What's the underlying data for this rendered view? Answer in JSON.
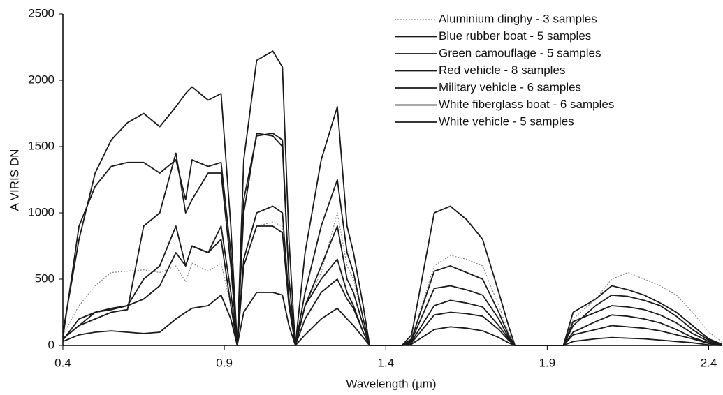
{
  "chart_data": {
    "type": "line",
    "x_label": "Wavelength (µm)",
    "y_label": "A VIRIS DN",
    "xlim": [
      0.4,
      2.44
    ],
    "ylim": [
      0,
      2500
    ],
    "xticks": [
      0.4,
      0.9,
      1.4,
      1.9,
      2.4
    ],
    "yticks": [
      0,
      500,
      1000,
      1500,
      2000,
      2500
    ],
    "grid": false,
    "legend": "top-right",
    "x": [
      0.4,
      0.45,
      0.5,
      0.55,
      0.6,
      0.65,
      0.7,
      0.75,
      0.78,
      0.8,
      0.85,
      0.89,
      0.92,
      0.94,
      0.96,
      1.0,
      1.05,
      1.08,
      1.1,
      1.12,
      1.15,
      1.2,
      1.25,
      1.28,
      1.3,
      1.33,
      1.35,
      1.45,
      1.48,
      1.55,
      1.6,
      1.65,
      1.7,
      1.75,
      1.78,
      1.8,
      1.95,
      1.98,
      2.05,
      2.1,
      2.15,
      2.2,
      2.25,
      2.3,
      2.35,
      2.4,
      2.44
    ],
    "series": [
      {
        "name": "Aluminium dinghy - 3 samples",
        "color": "#888888",
        "dash": "dotted",
        "values": [
          80,
          300,
          450,
          550,
          560,
          570,
          550,
          600,
          480,
          620,
          560,
          620,
          300,
          0,
          600,
          900,
          930,
          900,
          300,
          0,
          300,
          550,
          1000,
          600,
          500,
          200,
          0,
          0,
          50,
          600,
          680,
          650,
          600,
          300,
          100,
          0,
          0,
          200,
          350,
          500,
          550,
          500,
          450,
          380,
          250,
          100,
          30
        ]
      },
      {
        "name": "Blue rubber boat - 5 samples",
        "color": "#1a1a1a",
        "values": [
          100,
          800,
          1300,
          1550,
          1680,
          1750,
          1650,
          1800,
          1900,
          1950,
          1850,
          1900,
          900,
          0,
          1400,
          2150,
          2220,
          2100,
          800,
          0,
          700,
          1400,
          1800,
          900,
          700,
          300,
          0,
          0,
          80,
          1000,
          1050,
          950,
          800,
          400,
          150,
          0,
          0,
          250,
          350,
          450,
          420,
          380,
          320,
          250,
          150,
          50,
          10
        ]
      },
      {
        "name": "Green camouflage - 5 samples",
        "color": "#1a1a1a",
        "values": [
          30,
          80,
          100,
          110,
          100,
          90,
          100,
          200,
          250,
          280,
          300,
          380,
          200,
          0,
          250,
          400,
          400,
          380,
          150,
          0,
          80,
          200,
          280,
          200,
          150,
          60,
          0,
          0,
          10,
          120,
          140,
          130,
          110,
          60,
          20,
          0,
          0,
          30,
          50,
          60,
          55,
          50,
          40,
          30,
          20,
          5,
          0
        ]
      },
      {
        "name": "Red vehicle - 8 samples",
        "color": "#1a1a1a",
        "values": [
          50,
          150,
          200,
          250,
          270,
          900,
          1000,
          1450,
          1000,
          1100,
          1300,
          1300,
          600,
          0,
          1000,
          1600,
          1580,
          1500,
          500,
          0,
          400,
          900,
          1250,
          700,
          550,
          200,
          0,
          0,
          50,
          560,
          600,
          550,
          500,
          250,
          80,
          0,
          0,
          150,
          300,
          380,
          370,
          340,
          300,
          220,
          120,
          40,
          10
        ]
      },
      {
        "name": "Military vehicle  - 6 samples",
        "color": "#1a1a1a",
        "values": [
          40,
          200,
          250,
          270,
          300,
          350,
          450,
          700,
          600,
          750,
          700,
          900,
          400,
          0,
          650,
          1000,
          1050,
          1000,
          350,
          0,
          300,
          600,
          900,
          500,
          400,
          150,
          0,
          0,
          30,
          300,
          340,
          320,
          290,
          150,
          50,
          0,
          0,
          80,
          120,
          150,
          140,
          130,
          110,
          80,
          50,
          15,
          0
        ]
      },
      {
        "name": "White fiberglass boat - 6 samples",
        "color": "#1a1a1a",
        "values": [
          60,
          900,
          1200,
          1350,
          1380,
          1380,
          1300,
          1400,
          1100,
          1400,
          1350,
          1380,
          700,
          0,
          1100,
          1580,
          1600,
          1550,
          500,
          0,
          300,
          500,
          650,
          400,
          300,
          100,
          0,
          0,
          40,
          430,
          450,
          420,
          380,
          200,
          60,
          0,
          0,
          180,
          250,
          300,
          290,
          270,
          230,
          170,
          90,
          30,
          5
        ]
      },
      {
        "name": "White vehicle - 5 samples",
        "color": "#1a1a1a",
        "values": [
          50,
          150,
          250,
          280,
          300,
          500,
          600,
          900,
          600,
          750,
          700,
          800,
          300,
          0,
          600,
          900,
          900,
          850,
          300,
          0,
          200,
          400,
          500,
          350,
          280,
          100,
          0,
          0,
          20,
          230,
          250,
          240,
          220,
          120,
          40,
          0,
          0,
          100,
          180,
          230,
          220,
          200,
          170,
          120,
          60,
          20,
          0
        ]
      }
    ]
  }
}
